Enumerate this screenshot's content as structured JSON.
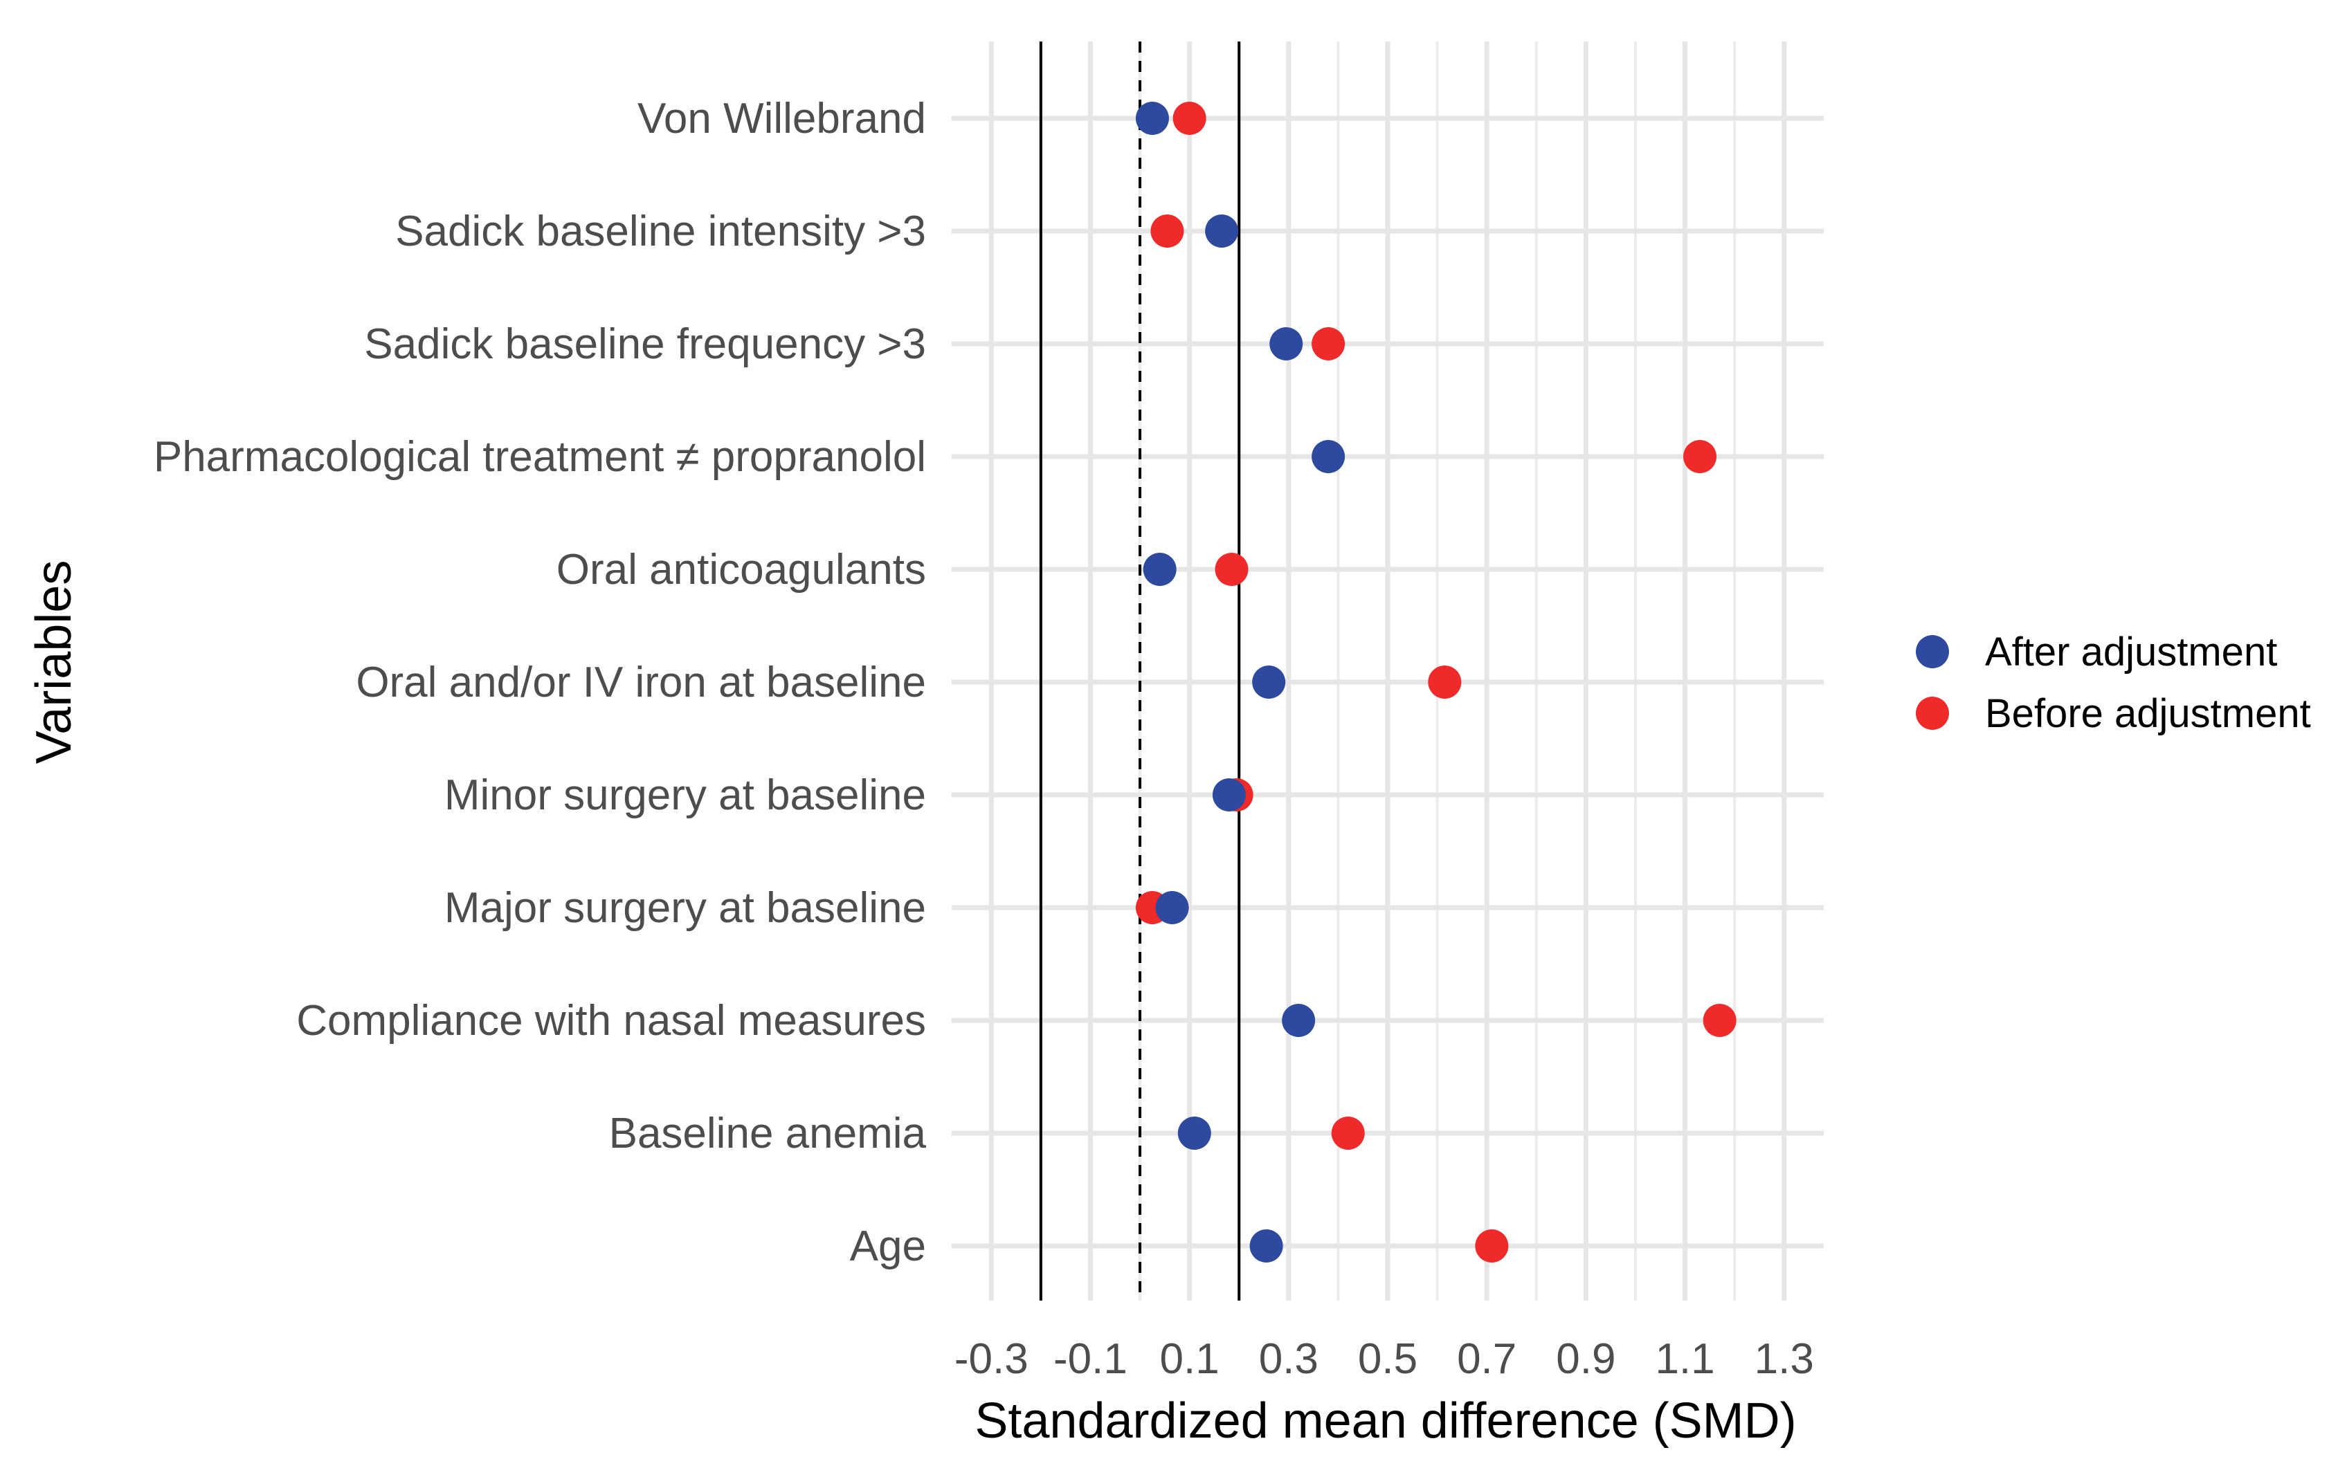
{
  "chart_data": {
    "type": "scatter",
    "title": "",
    "xlabel": "Standardized mean difference (SMD)",
    "ylabel": "Variables",
    "xlim": [
      -0.38,
      1.38
    ],
    "x_ticks": [
      -0.3,
      -0.1,
      0.1,
      0.3,
      0.5,
      0.7,
      0.9,
      1.1,
      1.3
    ],
    "x_tick_labels": [
      "-0.3",
      "-0.1",
      "0.1",
      "0.3",
      "0.5",
      "0.7",
      "0.9",
      "1.1",
      "1.3"
    ],
    "grid": true,
    "reference_lines": [
      {
        "x": -0.2,
        "style": "solid"
      },
      {
        "x": 0.0,
        "style": "dashed"
      },
      {
        "x": 0.2,
        "style": "solid"
      }
    ],
    "categories": [
      "Von Willebrand",
      "Sadick baseline intensity >3",
      "Sadick baseline frequency >3",
      "Pharmacological treatment ≠ propranolol",
      "Oral anticoagulants",
      "Oral and/or IV iron at baseline",
      "Minor surgery at baseline",
      "Major surgery at baseline",
      "Compliance with nasal measures",
      "Baseline anemia",
      "Age"
    ],
    "series": [
      {
        "name": "Before adjustment",
        "color": "#ee2a2a",
        "values": [
          0.1,
          0.055,
          0.38,
          1.13,
          0.185,
          0.615,
          0.195,
          0.025,
          1.17,
          0.42,
          0.71
        ]
      },
      {
        "name": "After adjustment",
        "color": "#2e4a9e",
        "values": [
          0.025,
          0.165,
          0.295,
          0.38,
          0.04,
          0.26,
          0.18,
          0.065,
          0.32,
          0.11,
          0.255
        ]
      }
    ],
    "legend": {
      "position": "right",
      "entries": [
        "After adjustment",
        "Before adjustment"
      ]
    }
  }
}
